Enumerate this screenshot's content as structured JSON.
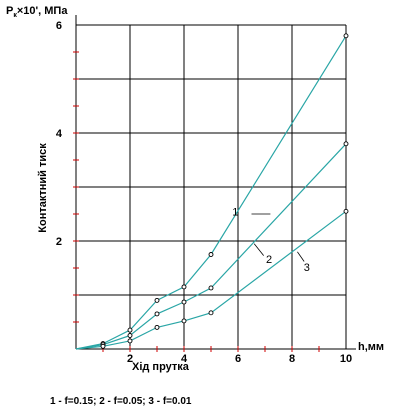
{
  "chart_data": {
    "type": "line",
    "ylabel_top": "P",
    "ylabel_top_sub": "к",
    "ylabel_top_rest": "×10', МПа",
    "ylabel": "Контактний тиск",
    "xlabel": "Хід прутка",
    "xunit": "h,мм",
    "xlim": [
      0,
      10
    ],
    "ylim": [
      0,
      6
    ],
    "x_ticks": [
      "2",
      "4",
      "6",
      "8",
      "10"
    ],
    "y_ticks": [
      "2",
      "4",
      "6"
    ],
    "color": "#2aa6a6",
    "series": [
      {
        "name": "1",
        "x": [
          1,
          2,
          3,
          4,
          5,
          10
        ],
        "y": [
          0.1,
          0.35,
          0.9,
          1.15,
          1.75,
          5.8
        ]
      },
      {
        "name": "2",
        "x": [
          1,
          2,
          3,
          4,
          5,
          10
        ],
        "y": [
          0.08,
          0.25,
          0.65,
          0.87,
          1.13,
          3.8
        ]
      },
      {
        "name": "3",
        "x": [
          1,
          2,
          3,
          4,
          5,
          10
        ],
        "y": [
          0.05,
          0.15,
          0.4,
          0.52,
          0.67,
          2.55
        ]
      }
    ],
    "curve_labels": [
      "1",
      "2",
      "3"
    ],
    "caption": "1 - f=0.15; 2 - f=0.05; 3 - f=0.01"
  }
}
